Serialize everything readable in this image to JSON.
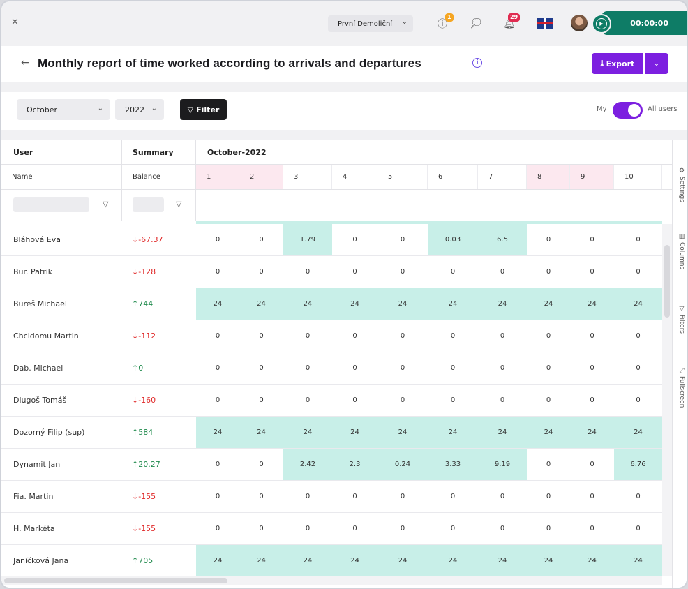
{
  "topbar": {
    "close_label": "×",
    "company": "První Demoliční",
    "alerts_badge": "1",
    "notifications_badge": "29",
    "timer": "00:00:00"
  },
  "header": {
    "back_label": "←",
    "title": "Monthly report of time worked according to arrivals and departures",
    "info_label": "i",
    "export_label": "Export"
  },
  "filters": {
    "month": "October",
    "year": "2022",
    "filter_label": "Filter",
    "toggle_left": "My",
    "toggle_right": "All users"
  },
  "grid": {
    "col_user": "User",
    "col_summary": "Summary",
    "col_period": "October-2022",
    "sub_name": "Name",
    "sub_balance": "Balance",
    "days": [
      "1",
      "2",
      "3",
      "4",
      "5",
      "6",
      "7",
      "8",
      "9",
      "10"
    ],
    "weekend_days": [
      1,
      2,
      8,
      9
    ],
    "rows": [
      {
        "name": "Bláhová Eva",
        "balance": "↓-67.37",
        "dir": "neg",
        "values": [
          "0",
          "0",
          "1.79",
          "0",
          "0",
          "0.03",
          "6.5",
          "0",
          "0",
          "0"
        ],
        "hl": [
          3,
          6,
          7
        ]
      },
      {
        "name": "Bur. Patrik",
        "balance": "↓-128",
        "dir": "neg",
        "values": [
          "0",
          "0",
          "0",
          "0",
          "0",
          "0",
          "0",
          "0",
          "0",
          "0"
        ],
        "hl": []
      },
      {
        "name": "Bureš Michael",
        "balance": "↑744",
        "dir": "pos",
        "values": [
          "24",
          "24",
          "24",
          "24",
          "24",
          "24",
          "24",
          "24",
          "24",
          "24"
        ],
        "hl": [
          1,
          2,
          3,
          4,
          5,
          6,
          7,
          8,
          9,
          10
        ]
      },
      {
        "name": "Chcidomu Martin",
        "balance": "↓-112",
        "dir": "neg",
        "values": [
          "0",
          "0",
          "0",
          "0",
          "0",
          "0",
          "0",
          "0",
          "0",
          "0"
        ],
        "hl": []
      },
      {
        "name": "Dab. Michael",
        "balance": "↑0",
        "dir": "pos",
        "values": [
          "0",
          "0",
          "0",
          "0",
          "0",
          "0",
          "0",
          "0",
          "0",
          "0"
        ],
        "hl": []
      },
      {
        "name": "Dlugoš Tomáš",
        "balance": "↓-160",
        "dir": "neg",
        "values": [
          "0",
          "0",
          "0",
          "0",
          "0",
          "0",
          "0",
          "0",
          "0",
          "0"
        ],
        "hl": []
      },
      {
        "name": "Dozorný Filip (sup)",
        "balance": "↑584",
        "dir": "pos",
        "values": [
          "24",
          "24",
          "24",
          "24",
          "24",
          "24",
          "24",
          "24",
          "24",
          "24"
        ],
        "hl": [
          1,
          2,
          3,
          4,
          5,
          6,
          7,
          8,
          9,
          10
        ]
      },
      {
        "name": "Dynamit Jan",
        "balance": "↑20.27",
        "dir": "pos",
        "values": [
          "0",
          "0",
          "2.42",
          "2.3",
          "0.24",
          "3.33",
          "9.19",
          "0",
          "0",
          "6.76"
        ],
        "hl": [
          3,
          4,
          5,
          6,
          7,
          10
        ]
      },
      {
        "name": "Fia. Martin",
        "balance": "↓-155",
        "dir": "neg",
        "values": [
          "0",
          "0",
          "0",
          "0",
          "0",
          "0",
          "0",
          "0",
          "0",
          "0"
        ],
        "hl": []
      },
      {
        "name": "H. Markéta",
        "balance": "↓-155",
        "dir": "neg",
        "values": [
          "0",
          "0",
          "0",
          "0",
          "0",
          "0",
          "0",
          "0",
          "0",
          "0"
        ],
        "hl": []
      },
      {
        "name": "Janíčková Jana",
        "balance": "↑705",
        "dir": "pos",
        "values": [
          "24",
          "24",
          "24",
          "24",
          "24",
          "24",
          "24",
          "24",
          "24",
          "24"
        ],
        "hl": [
          1,
          2,
          3,
          4,
          5,
          6,
          7,
          8,
          9,
          10
        ]
      }
    ]
  },
  "sidepanel": {
    "settings": "Settings",
    "columns": "Columns",
    "filters": "Filters",
    "fullscreen": "Fullscreen"
  },
  "icons": {
    "close": "close-icon",
    "alert": "alert-icon",
    "chat": "chat-icon",
    "bell": "bell-icon",
    "flag": "uk-flag-icon",
    "play": "play-icon",
    "export": "download-icon",
    "filter": "filter-icon"
  },
  "colors": {
    "accent": "#7c1fe0",
    "timer": "#0e7c66",
    "highlight": "#c8efe8",
    "weekend": "#fce8ef",
    "negative": "#e02b2b",
    "positive": "#1f8a4c"
  }
}
